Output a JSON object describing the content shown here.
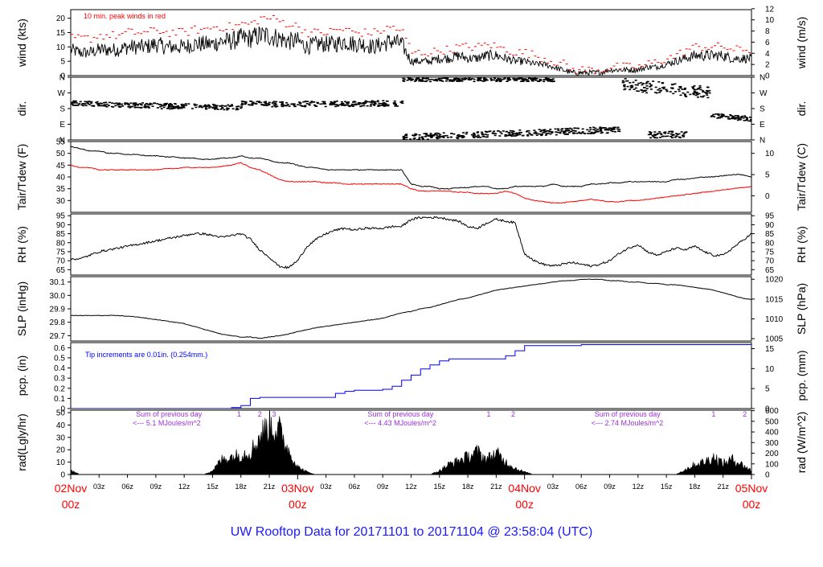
{
  "chart_title": "UW Rooftop Data for 20171101  to  20171104 @ 23:58:04  (UTC)",
  "colors": {
    "main": "#000000",
    "red": "#ff0000",
    "blue": "#0000ff",
    "purple": "#9b30d9",
    "title": "#1a1aff"
  },
  "x_axis": {
    "start": "2017-11-02T00:00Z",
    "end": "2017-11-05T00:00Z",
    "hour_ticks": [
      "03z",
      "06z",
      "09z",
      "12z",
      "15z",
      "18z",
      "21z",
      "03z",
      "06z",
      "09z",
      "12z",
      "15z",
      "18z",
      "21z",
      "03z",
      "06z",
      "09z",
      "12z",
      "15z",
      "18z",
      "21z"
    ],
    "hour_tick_hours": [
      3,
      6,
      9,
      12,
      15,
      18,
      21,
      27,
      30,
      33,
      36,
      39,
      42,
      45,
      51,
      54,
      57,
      60,
      63,
      66,
      69
    ],
    "day_labels": [
      {
        "date": "02Nov",
        "hour": "00z",
        "at_hour": 0
      },
      {
        "date": "03Nov",
        "hour": "00z",
        "at_hour": 24
      },
      {
        "date": "04Nov",
        "hour": "00z",
        "at_hour": 48
      },
      {
        "date": "05Nov",
        "hour": "00z",
        "at_hour": 72
      }
    ]
  },
  "chart_data": [
    {
      "id": "wind",
      "type": "line",
      "ylabel_left": "wind (kts)",
      "ylabel_right": "wind (m/s)",
      "ylim": [
        0,
        23
      ],
      "left_ticks": [
        0,
        5,
        10,
        15,
        20
      ],
      "right_ticks": [
        0,
        2,
        4,
        6,
        8,
        10,
        12
      ],
      "annotation": "10 min. peak winds in red",
      "series": [
        {
          "values_hourly": [
            9,
            8,
            8,
            9,
            9,
            9,
            10,
            10,
            10,
            11,
            10,
            10,
            10,
            11,
            11,
            11,
            12,
            12,
            13,
            13,
            14,
            14,
            13,
            12,
            12,
            10,
            11,
            11,
            11,
            12,
            11,
            11,
            10,
            11,
            12,
            11,
            5,
            5,
            5,
            6,
            6,
            7,
            6,
            6,
            7,
            7,
            6,
            5,
            5,
            4,
            4,
            3,
            2,
            1,
            1,
            1,
            1,
            2,
            2,
            2,
            2,
            3,
            3,
            4,
            5,
            6,
            7,
            7,
            7,
            7,
            6,
            6,
            6
          ]
        },
        {
          "name": "10 min. peak winds",
          "values_hourly": [
            13,
            13,
            13,
            14,
            14,
            14,
            15,
            15,
            15,
            16,
            15,
            15,
            15,
            16,
            16,
            17,
            17,
            17,
            18,
            18,
            20,
            20,
            19,
            18,
            17,
            15,
            15,
            15,
            16,
            16,
            15,
            15,
            15,
            16,
            17,
            15,
            8,
            8,
            8,
            9,
            9,
            10,
            10,
            10,
            11,
            10,
            9,
            8,
            8,
            7,
            6,
            5,
            4,
            2,
            2,
            2,
            2,
            3,
            3,
            3,
            3,
            4,
            5,
            6,
            7,
            9,
            10,
            10,
            10,
            10,
            9,
            9,
            9
          ]
        }
      ]
    },
    {
      "id": "dir",
      "type": "scatter",
      "ylabel_left": "dir.",
      "ylabel_right": "dir.",
      "ylim": [
        0,
        360
      ],
      "tick_labels": [
        "N",
        "W",
        "S",
        "E",
        "N"
      ],
      "tick_values": [
        360,
        270,
        180,
        90,
        0
      ],
      "segments": [
        {
          "from_hour": 0,
          "to_hour": 6.5,
          "start_deg": 212,
          "end_deg": 198,
          "spread": 14
        },
        {
          "from_hour": 6.5,
          "to_hour": 18,
          "start_deg": 198,
          "end_deg": 185,
          "spread": 16
        },
        {
          "from_hour": 18,
          "to_hour": 21,
          "start_deg": 212,
          "end_deg": 208,
          "spread": 12
        },
        {
          "from_hour": 21,
          "to_hour": 35,
          "start_deg": 205,
          "end_deg": 210,
          "spread": 16
        },
        {
          "from_hour": 35,
          "to_hour": 51,
          "start_deg": 345,
          "end_deg": 345,
          "spread": 10
        },
        {
          "from_hour": 35,
          "to_hour": 58,
          "start_deg": 15,
          "end_deg": 60,
          "spread": 18
        },
        {
          "from_hour": 58,
          "to_hour": 67.5,
          "start_deg": 320,
          "end_deg": 270,
          "spread": 35
        },
        {
          "from_hour": 61,
          "to_hour": 65,
          "start_deg": 30,
          "end_deg": 30,
          "spread": 20
        },
        {
          "from_hour": 67.5,
          "to_hour": 72,
          "start_deg": 140,
          "end_deg": 120,
          "spread": 14
        }
      ]
    },
    {
      "id": "temp",
      "type": "line",
      "ylabel_left": "Tair/Tdew (F)",
      "ylabel_right": "Tair/Tdew (C)",
      "ylim": [
        25,
        55
      ],
      "left_ticks": [
        30,
        35,
        40,
        45,
        50,
        55
      ],
      "right_ticks": [
        0,
        5,
        10
      ],
      "series": [
        {
          "name": "Tair",
          "values_hourly": [
            53,
            52,
            51,
            51,
            50,
            50,
            49.5,
            49.5,
            49,
            49,
            48.5,
            48.5,
            48,
            48,
            47.5,
            47.5,
            48,
            48,
            49,
            48,
            48,
            47,
            46,
            46,
            45,
            44,
            44,
            43,
            43,
            43,
            43,
            43,
            43,
            43,
            43,
            43,
            37,
            36,
            36,
            35,
            35,
            35.5,
            35.5,
            36,
            36,
            35,
            35,
            36,
            36,
            36,
            36,
            37,
            36,
            36,
            36,
            37,
            37,
            37.5,
            37.5,
            38,
            38,
            38,
            38,
            38,
            39,
            39,
            39.5,
            40,
            40,
            40.5,
            41,
            41,
            40
          ]
        },
        {
          "name": "Tdew",
          "values_hourly": [
            45,
            44,
            44,
            43,
            43,
            43,
            43,
            43,
            43,
            43,
            43.5,
            43.5,
            44,
            44,
            44,
            44,
            44.5,
            45,
            46,
            44,
            43,
            41,
            39,
            38,
            38,
            38,
            38,
            37.5,
            37.5,
            37,
            37,
            37,
            37,
            37,
            37,
            37,
            35,
            34,
            34,
            34,
            34,
            33.5,
            33.5,
            33,
            33,
            33,
            34,
            33,
            31,
            30,
            29.5,
            29,
            29,
            29.5,
            30,
            30.5,
            30,
            29.5,
            29.5,
            30,
            30,
            30.5,
            31,
            31.5,
            32,
            32.5,
            33,
            33.5,
            34,
            34.5,
            35,
            35.5,
            36
          ]
        }
      ]
    },
    {
      "id": "rh",
      "type": "line",
      "ylabel_left": "RH (%)",
      "ylabel_right": "RH (%)",
      "ylim": [
        62,
        96
      ],
      "left_ticks": [
        65,
        70,
        75,
        80,
        85,
        90,
        95
      ],
      "right_ticks": [
        65,
        70,
        75,
        80,
        85,
        90,
        95
      ],
      "series": [
        {
          "values_hourly": [
            71,
            71,
            73,
            75,
            76,
            77,
            78,
            79,
            80,
            81,
            82,
            83,
            84,
            85,
            85,
            84,
            83,
            84,
            85,
            82,
            76,
            72,
            67,
            66,
            70,
            78,
            82,
            85,
            87,
            88,
            87,
            88,
            88,
            88,
            89,
            89,
            93,
            94,
            94,
            94,
            93,
            92,
            89,
            88,
            91,
            93,
            92,
            91,
            74,
            70,
            68,
            67,
            68,
            69,
            68,
            67,
            68,
            70,
            74,
            77,
            79,
            75,
            73,
            75,
            77,
            76,
            78,
            75,
            73,
            73,
            77,
            81,
            85
          ]
        }
      ]
    },
    {
      "id": "slp",
      "type": "line",
      "ylabel_left": "SLP (inHg)",
      "ylabel_right": "SLP (hPa)",
      "ylim": [
        29.66,
        30.14
      ],
      "left_ticks": [
        29.7,
        29.8,
        29.9,
        30.0,
        30.1
      ],
      "left_tick_labels": [
        "29.7",
        "29.8",
        "29.9",
        "30.0",
        "30.1"
      ],
      "right_ticks": [
        1005,
        1010,
        1015,
        1020
      ],
      "series": [
        {
          "values_hourly": [
            29.85,
            29.85,
            29.85,
            29.85,
            29.85,
            29.85,
            29.845,
            29.84,
            29.83,
            29.82,
            29.81,
            29.8,
            29.79,
            29.77,
            29.75,
            29.73,
            29.71,
            29.7,
            29.69,
            29.69,
            29.68,
            29.69,
            29.7,
            29.71,
            29.73,
            29.745,
            29.76,
            29.77,
            29.78,
            29.79,
            29.8,
            29.81,
            29.82,
            29.83,
            29.85,
            29.87,
            29.88,
            29.9,
            29.91,
            29.93,
            29.95,
            29.97,
            29.98,
            30.0,
            30.02,
            30.04,
            30.05,
            30.06,
            30.07,
            30.08,
            30.09,
            30.1,
            30.11,
            30.11,
            30.12,
            30.12,
            30.12,
            30.11,
            30.11,
            30.1,
            30.1,
            30.09,
            30.09,
            30.08,
            30.08,
            30.07,
            30.06,
            30.05,
            30.04,
            30.02,
            30.0,
            29.98,
            29.97
          ]
        }
      ]
    },
    {
      "id": "pcp",
      "type": "line",
      "ylabel_left": "pcp. (in)",
      "ylabel_right": "pcp. (mm)",
      "ylim": [
        0,
        0.65
      ],
      "left_ticks": [
        0,
        0.1,
        0.2,
        0.3,
        0.4,
        0.5,
        0.6
      ],
      "left_tick_labels": [
        "0",
        "0.1",
        "0.2",
        "0.3",
        "0.4",
        "0.5",
        "0.6"
      ],
      "right_ticks": [
        0,
        5,
        10,
        15
      ],
      "annotation": "Tip increments are 0.01in. (0.254mm.)",
      "series": [
        {
          "values_hourly": [
            0,
            0,
            0,
            0,
            0,
            0,
            0,
            0,
            0,
            0,
            0,
            0,
            0,
            0,
            0,
            0,
            0,
            0.01,
            0.03,
            0.1,
            0.11,
            0.11,
            0.11,
            0.11,
            0.11,
            0.11,
            0.11,
            0.11,
            0.15,
            0.17,
            0.18,
            0.18,
            0.18,
            0.19,
            0.22,
            0.28,
            0.33,
            0.39,
            0.43,
            0.47,
            0.49,
            0.49,
            0.49,
            0.49,
            0.49,
            0.49,
            0.52,
            0.57,
            0.62,
            0.62,
            0.62,
            0.62,
            0.62,
            0.62,
            0.63,
            0.63,
            0.63,
            0.63,
            0.63,
            0.63,
            0.63,
            0.63,
            0.63,
            0.63,
            0.63,
            0.63,
            0.63,
            0.63,
            0.63,
            0.63,
            0.63,
            0.63,
            0.64
          ]
        }
      ]
    },
    {
      "id": "rad",
      "type": "area",
      "ylabel_left": "rad(Lgly/hr)",
      "ylabel_right": "rad (W/m^2)",
      "ylim": [
        0,
        52
      ],
      "left_ticks": [
        0,
        10,
        20,
        30,
        40,
        50
      ],
      "right_ticks": [
        0,
        100,
        200,
        300,
        400,
        500,
        600
      ],
      "series": [
        {
          "values_hourly": [
            3,
            0,
            0,
            0,
            0,
            0,
            0,
            0,
            0,
            0,
            0,
            0,
            0,
            0,
            0,
            3,
            12,
            14,
            16,
            18,
            30,
            40,
            36,
            20,
            6,
            2,
            0,
            0,
            0,
            0,
            0,
            0,
            0,
            0,
            0,
            0,
            0,
            0,
            0,
            3,
            8,
            11,
            14,
            18,
            12,
            17,
            10,
            5,
            2,
            0,
            0,
            0,
            0,
            0,
            0,
            0,
            0,
            0,
            0,
            0,
            0,
            0,
            0,
            0,
            0,
            4,
            8,
            10,
            14,
            9,
            12,
            8,
            3
          ]
        }
      ],
      "annotations": [
        {
          "text": "Sum of previous day",
          "value": "<--- 5.1 MJoules/m^2",
          "at_hour": 3.5
        },
        {
          "text": "Sum of previous day",
          "value": "<--- 4.43 MJoules/m^2",
          "at_hour": 28.0
        },
        {
          "text": "Sum of previous day",
          "value": "<--- 2.74 MJoules/m^2",
          "at_hour": 52.0
        }
      ],
      "event_marks": [
        {
          "label": "1",
          "at_hour": 17.8
        },
        {
          "label": "2",
          "at_hour": 20.0
        },
        {
          "label": "3",
          "at_hour": 21.5
        },
        {
          "label": "1",
          "at_hour": 44.2
        },
        {
          "label": "2",
          "at_hour": 46.8
        },
        {
          "label": "1",
          "at_hour": 68.0
        },
        {
          "label": "2",
          "at_hour": 71.3
        }
      ]
    }
  ]
}
